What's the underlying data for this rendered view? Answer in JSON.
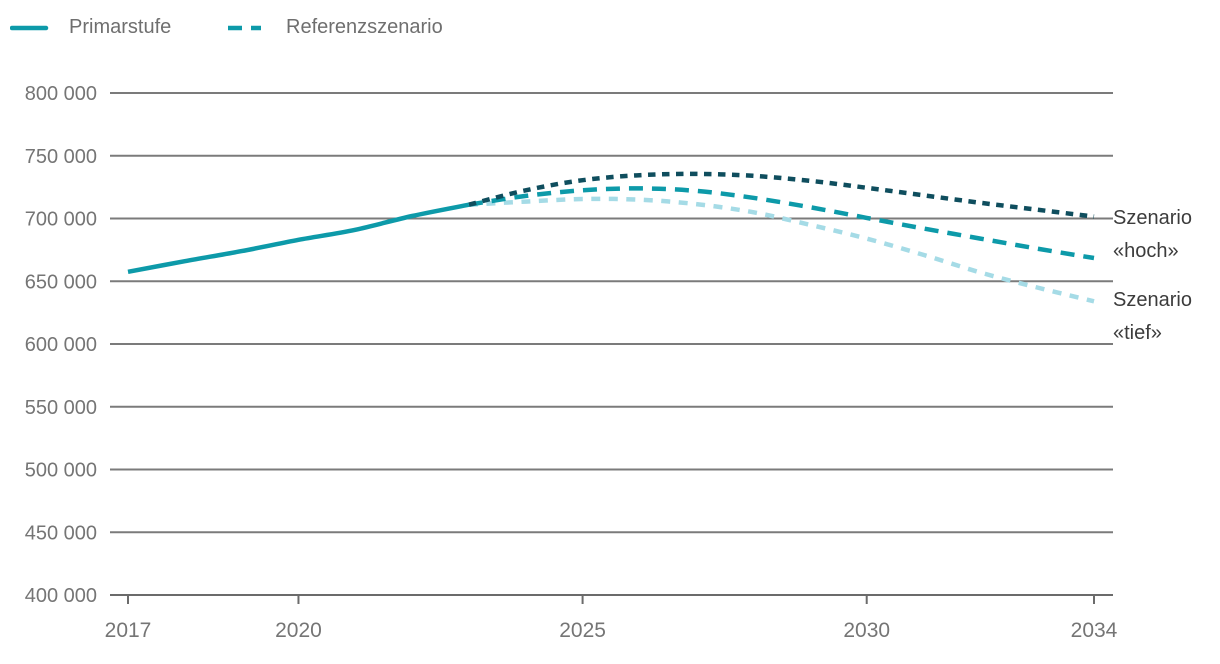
{
  "legend": {
    "items": [
      {
        "id": "primarstufe",
        "label": "Primarstufe",
        "style": "solid",
        "color_key": "teal"
      },
      {
        "id": "referenzszenario",
        "label": "Referenzszenario",
        "style": "dashed",
        "color_key": "teal"
      }
    ]
  },
  "annotations": {
    "hoch": {
      "line1": "Szenario",
      "line2": "«hoch»"
    },
    "tief": {
      "line1": "Szenario",
      "line2": "«tief»"
    }
  },
  "colors": {
    "teal": "#0d9aa9",
    "dark": "#0f4e5e",
    "light": "#a5dbe6",
    "gridline": "#7b7b7b",
    "axis": "#6b6b6b",
    "tick_label": "#757575",
    "legend_text": "#6f6f6f",
    "annotation_text": "#3c3c3c"
  },
  "chart_data": {
    "type": "line",
    "title": "",
    "xlabel": "",
    "ylabel": "",
    "xlim": [
      2017,
      2034
    ],
    "ylim": [
      400000,
      800000
    ],
    "grid": true,
    "legend_position": "top-left",
    "y_ticks": [
      {
        "value": 800000,
        "label": "800 000"
      },
      {
        "value": 750000,
        "label": "750 000"
      },
      {
        "value": 700000,
        "label": "700 000"
      },
      {
        "value": 650000,
        "label": "650 000"
      },
      {
        "value": 600000,
        "label": "600 000"
      },
      {
        "value": 550000,
        "label": "550 000"
      },
      {
        "value": 500000,
        "label": "500 000"
      },
      {
        "value": 450000,
        "label": "450 000"
      },
      {
        "value": 400000,
        "label": "400 000"
      }
    ],
    "x_ticks": [
      {
        "year": 2017,
        "label": "2017"
      },
      {
        "year": 2020,
        "label": "2020"
      },
      {
        "year": 2025,
        "label": "2025"
      },
      {
        "year": 2030,
        "label": "2030"
      },
      {
        "year": 2034,
        "label": "2034"
      }
    ],
    "series": [
      {
        "id": "szenario-tief",
        "name": "Szenario «tief»",
        "color_key": "light",
        "dash": "short-dash",
        "x": [
          2023,
          2024,
          2025,
          2026,
          2027,
          2028,
          2029,
          2030,
          2031,
          2032,
          2033,
          2034
        ],
        "values": [
          711000,
          713500,
          715500,
          715000,
          711500,
          705000,
          695000,
          684000,
          671000,
          657000,
          645000,
          634000
        ]
      },
      {
        "id": "referenzszenario",
        "name": "Referenzszenario",
        "color_key": "teal",
        "dash": "dashed",
        "x": [
          2023,
          2024,
          2025,
          2026,
          2027,
          2028,
          2029,
          2030,
          2031,
          2032,
          2033,
          2034
        ],
        "values": [
          711000,
          718000,
          722500,
          724000,
          722000,
          716500,
          709000,
          700500,
          692000,
          684000,
          676000,
          668500
        ]
      },
      {
        "id": "szenario-hoch",
        "name": "Szenario «hoch»",
        "color_key": "dark",
        "dash": "dotted",
        "x": [
          2023,
          2024,
          2025,
          2026,
          2027,
          2028,
          2029,
          2030,
          2031,
          2032,
          2033,
          2034
        ],
        "values": [
          711000,
          722500,
          730500,
          734500,
          735500,
          734000,
          730000,
          724500,
          718500,
          712500,
          707000,
          701500
        ]
      },
      {
        "id": "primarstufe",
        "name": "Primarstufe",
        "color_key": "teal",
        "dash": "solid",
        "x": [
          2017,
          2018,
          2019,
          2020,
          2021,
          2022,
          2023
        ],
        "values": [
          657500,
          666000,
          674000,
          683000,
          691000,
          702000,
          711000
        ]
      }
    ]
  }
}
